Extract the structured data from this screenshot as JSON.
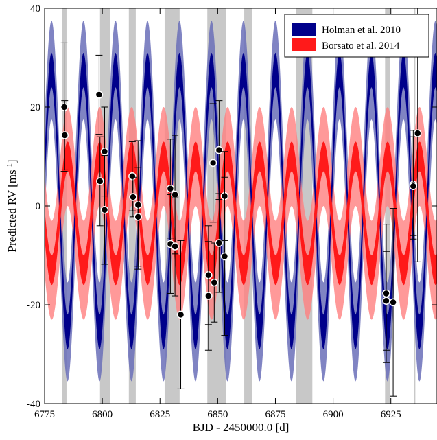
{
  "chart_data": {
    "type": "line",
    "xlabel": "BJD - 2450000.0 [d]",
    "ylabel_main": "Predicted RV [ms",
    "ylabel_sup": "-1",
    "ylabel_end": "]",
    "xlim": [
      6775,
      6945
    ],
    "ylim": [
      -40,
      40
    ],
    "xticks": [
      6775,
      6800,
      6825,
      6850,
      6875,
      6900,
      6925
    ],
    "yticks": [
      -40,
      -20,
      0,
      20,
      40
    ],
    "tick_labels_x": [
      "6775",
      "6800",
      "6825",
      "6850",
      "6875",
      "6900",
      "6925"
    ],
    "tick_labels_y": [
      "-40",
      "-20",
      "0",
      "20",
      "40"
    ],
    "legend_position": "top-right",
    "series": [
      {
        "name": "Holman et al. 2010",
        "color": "#00008b",
        "band_color": "#6a6eb8",
        "model": {
          "amplitude": 26.5,
          "period": 13.86,
          "phase_x0": 6778.0,
          "offset": 1.0,
          "inner_halfwidth": 3.5,
          "outer_halfwidth": 10
        }
      },
      {
        "name": "Borsato et al. 2014",
        "color": "#ff1a1a",
        "band_color": "#ff8080",
        "model": {
          "amplitude": 11.5,
          "period": 13.86,
          "phase_x0": 6785.0,
          "offset": -1.5,
          "inner_halfwidth": 3.0,
          "outer_halfwidth": 10
        }
      }
    ],
    "shaded_regions": [
      [
        6782.5,
        6784.5
      ],
      [
        6799,
        6803.5
      ],
      [
        6811.5,
        6814.5
      ],
      [
        6827,
        6833.5
      ],
      [
        6845.5,
        6853.5
      ],
      [
        6861.5,
        6865
      ],
      [
        6884,
        6891
      ],
      [
        6922.5,
        6924.5
      ],
      [
        6935,
        6935.6
      ]
    ],
    "observations": [
      {
        "x": 6783.5,
        "y": 20,
        "err": 13
      },
      {
        "x": 6783.7,
        "y": 14.3,
        "err": 7
      },
      {
        "x": 6798.6,
        "y": 22.5,
        "err": 8
      },
      {
        "x": 6799.0,
        "y": 5.0,
        "err": 9
      },
      {
        "x": 6801.0,
        "y": 11.0,
        "err": 9
      },
      {
        "x": 6801.0,
        "y": -0.8,
        "err": 11
      },
      {
        "x": 6813.0,
        "y": 6.0,
        "err": 7
      },
      {
        "x": 6813.3,
        "y": 1.8,
        "err": 4
      },
      {
        "x": 6815.5,
        "y": 0.2,
        "err": 13
      },
      {
        "x": 6815.5,
        "y": -2.2,
        "err": 10
      },
      {
        "x": 6829.5,
        "y": 3.5,
        "err": 10
      },
      {
        "x": 6829.5,
        "y": -7.7,
        "err": 10
      },
      {
        "x": 6831.5,
        "y": 2.3,
        "err": 12
      },
      {
        "x": 6831.5,
        "y": -8.2,
        "err": 10
      },
      {
        "x": 6834.0,
        "y": -22.0,
        "err": 15
      },
      {
        "x": 6846.0,
        "y": -14.0,
        "err": 10
      },
      {
        "x": 6846.0,
        "y": -18.2,
        "err": 11
      },
      {
        "x": 6848.0,
        "y": 8.7,
        "err": 12
      },
      {
        "x": 6848.5,
        "y": -15.5,
        "err": 8
      },
      {
        "x": 6850.6,
        "y": 11.3,
        "err": 10
      },
      {
        "x": 6850.6,
        "y": -7.5,
        "err": 10
      },
      {
        "x": 6853.0,
        "y": 2.0,
        "err": 9
      },
      {
        "x": 6853.0,
        "y": -10.2,
        "err": 16
      },
      {
        "x": 6923.0,
        "y": -17.7,
        "err": 14
      },
      {
        "x": 6923.0,
        "y": -19.2,
        "err": 10
      },
      {
        "x": 6926.0,
        "y": -19.5,
        "err": 19
      },
      {
        "x": 6934.7,
        "y": 4.3,
        "err": 11
      },
      {
        "x": 6934.7,
        "y": 4.0,
        "err": 10
      },
      {
        "x": 6936.6,
        "y": 14.7,
        "err": 26
      }
    ]
  }
}
